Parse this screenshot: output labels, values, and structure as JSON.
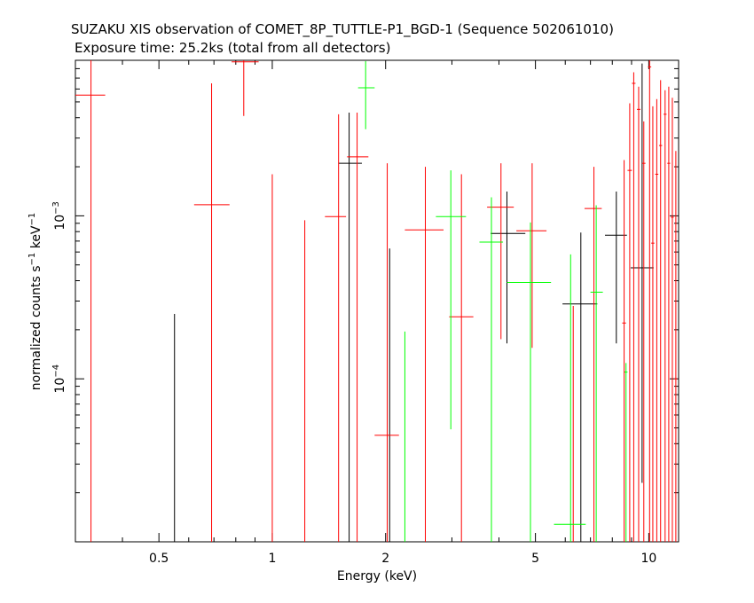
{
  "chart_data": {
    "type": "scatter",
    "title": "SUZAKU XIS observation of COMET_8P_TUTTLE-P1_BGD-1 (Sequence 502061010)",
    "subtitle": "Exposure time: 25.2ks (total from all detectors)",
    "xlabel": "Energy (keV)",
    "ylabel": {
      "main": "normalized counts s",
      "sup1": "−1",
      "mid": " keV",
      "sup2": "−1"
    },
    "x_scale": "log",
    "y_scale": "log",
    "xlim": [
      0.3,
      12
    ],
    "ylim": [
      1e-05,
      0.009
    ],
    "x_ticks": [
      {
        "value": 0.5,
        "label": "0.5"
      },
      {
        "value": 1,
        "label": "1"
      },
      {
        "value": 2,
        "label": "2"
      },
      {
        "value": 5,
        "label": "5"
      },
      {
        "value": 10,
        "label": "10"
      }
    ],
    "y_ticks": [
      {
        "value": 0.001,
        "base": "10",
        "exp": "−3"
      },
      {
        "value": 0.0001,
        "base": "10",
        "exp": "−4"
      }
    ],
    "series_colors": {
      "black": "#000000",
      "red": "#ff0000",
      "green": "#00ff00"
    },
    "series": [
      {
        "color": "black",
        "points": [
          {
            "x": 0.55,
            "y": null,
            "x_lo": null,
            "x_hi": null,
            "y_lo": 1e-05,
            "y_hi": 0.00025
          },
          {
            "x": 1.6,
            "y": 0.0021,
            "x_lo": 1.5,
            "x_hi": 1.73,
            "y_lo": 1e-05,
            "y_hi": 0.0043
          },
          {
            "x": 2.05,
            "y": null,
            "x_lo": null,
            "x_hi": null,
            "y_lo": 1e-05,
            "y_hi": 0.00063
          },
          {
            "x": 4.2,
            "y": 0.00078,
            "x_lo": 3.8,
            "x_hi": 4.7,
            "y_lo": 0.000165,
            "y_hi": 0.00141
          },
          {
            "x": 6.6,
            "y": 0.000288,
            "x_lo": 5.9,
            "x_hi": 7.3,
            "y_lo": 1e-05,
            "y_hi": 0.00079
          },
          {
            "x": 8.2,
            "y": 0.00076,
            "x_lo": 7.65,
            "x_hi": 8.75,
            "y_lo": 0.000165,
            "y_hi": 0.00141
          },
          {
            "x": 9.6,
            "y": 0.00048,
            "x_lo": 8.95,
            "x_hi": 10.3,
            "y_lo": 2.3e-05,
            "y_hi": 0.0086
          }
        ]
      },
      {
        "color": "red",
        "points": [
          {
            "x": 0.33,
            "y": 0.0055,
            "x_lo": 0.3,
            "x_hi": 0.36,
            "y_lo": 1e-05,
            "y_hi": 0.009
          },
          {
            "x": 0.69,
            "y": 0.00117,
            "x_lo": 0.62,
            "x_hi": 0.77,
            "y_lo": 1e-05,
            "y_hi": 0.0065
          },
          {
            "x": 0.84,
            "y": 0.0088,
            "x_lo": 0.78,
            "x_hi": 0.92,
            "y_lo": 0.0041,
            "y_hi": 0.009
          },
          {
            "x": 1.0,
            "y": null,
            "x_lo": null,
            "x_hi": null,
            "y_lo": 1e-05,
            "y_hi": 0.0018
          },
          {
            "x": 1.22,
            "y": null,
            "x_lo": null,
            "x_hi": null,
            "y_lo": 1e-05,
            "y_hi": 0.00094
          },
          {
            "x": 1.5,
            "y": 0.00099,
            "x_lo": 1.38,
            "x_hi": 1.57,
            "y_lo": 1e-05,
            "y_hi": 0.0042
          },
          {
            "x": 1.68,
            "y": 0.0023,
            "x_lo": 1.58,
            "x_hi": 1.8,
            "y_lo": 1e-05,
            "y_hi": 0.0043
          },
          {
            "x": 2.02,
            "y": 4.5e-05,
            "x_lo": 1.87,
            "x_hi": 2.17,
            "y_lo": 1e-05,
            "y_hi": 0.0021
          },
          {
            "x": 2.55,
            "y": 0.00082,
            "x_lo": 2.25,
            "x_hi": 2.85,
            "y_lo": 1e-05,
            "y_hi": 0.002
          },
          {
            "x": 3.18,
            "y": 0.00024,
            "x_lo": 2.95,
            "x_hi": 3.42,
            "y_lo": 1e-05,
            "y_hi": 0.0018
          },
          {
            "x": 4.05,
            "y": 0.00113,
            "x_lo": 3.72,
            "x_hi": 4.38,
            "y_lo": 0.000175,
            "y_hi": 0.0021
          },
          {
            "x": 4.9,
            "y": 0.00081,
            "x_lo": 4.45,
            "x_hi": 5.35,
            "y_lo": 0.000155,
            "y_hi": 0.0021
          },
          {
            "x": 6.3,
            "y": null,
            "x_lo": null,
            "x_hi": null,
            "y_lo": 1e-05,
            "y_hi": 0.00028
          },
          {
            "x": 7.15,
            "y": 0.00111,
            "x_lo": 6.75,
            "x_hi": 7.5,
            "y_lo": 1e-05,
            "y_hi": 0.002
          },
          {
            "x": 8.6,
            "y": 0.00022,
            "x_lo": 8.5,
            "x_hi": 8.7,
            "y_lo": 1e-05,
            "y_hi": 0.0022
          },
          {
            "x": 8.9,
            "y": 0.0019,
            "x_lo": 8.78,
            "x_hi": 9.02,
            "y_lo": 1e-05,
            "y_hi": 0.0049
          },
          {
            "x": 9.12,
            "y": 0.0065,
            "x_lo": 9.02,
            "x_hi": 9.22,
            "y_lo": 1e-05,
            "y_hi": 0.0076
          },
          {
            "x": 9.4,
            "y": 0.0045,
            "x_lo": 9.3,
            "x_hi": 9.5,
            "y_lo": 1e-05,
            "y_hi": 0.0062
          },
          {
            "x": 9.7,
            "y": 0.0021,
            "x_lo": 9.6,
            "x_hi": 9.8,
            "y_lo": 1e-05,
            "y_hi": 0.0038
          },
          {
            "x": 10.05,
            "y": 0.0082,
            "x_lo": 9.95,
            "x_hi": 10.15,
            "y_lo": 1e-05,
            "y_hi": 0.009
          },
          {
            "x": 10.25,
            "y": 0.00068,
            "x_lo": 10.15,
            "x_hi": 10.35,
            "y_lo": 1e-05,
            "y_hi": 0.0047
          },
          {
            "x": 10.5,
            "y": 0.0018,
            "x_lo": 10.4,
            "x_hi": 10.6,
            "y_lo": 1e-05,
            "y_hi": 0.0052
          },
          {
            "x": 10.75,
            "y": 0.0027,
            "x_lo": 10.65,
            "x_hi": 10.85,
            "y_lo": 1e-05,
            "y_hi": 0.0068
          },
          {
            "x": 11.05,
            "y": 0.0042,
            "x_lo": 10.95,
            "x_hi": 11.15,
            "y_lo": 1e-05,
            "y_hi": 0.0059
          },
          {
            "x": 11.3,
            "y": 0.0021,
            "x_lo": 11.2,
            "x_hi": 11.4,
            "y_lo": 1e-05,
            "y_hi": 0.0062
          },
          {
            "x": 11.55,
            "y": 0.00098,
            "x_lo": 11.45,
            "x_hi": 11.65,
            "y_lo": 1e-05,
            "y_hi": 0.0053
          },
          {
            "x": 11.8,
            "y": 0.0001,
            "x_lo": 11.7,
            "x_hi": 11.9,
            "y_lo": 1e-05,
            "y_hi": 0.0025
          }
        ]
      },
      {
        "color": "green",
        "points": [
          {
            "x": 1.77,
            "y": 0.0061,
            "x_lo": 1.69,
            "x_hi": 1.87,
            "y_lo": 0.0034,
            "y_hi": 0.0089
          },
          {
            "x": 2.25,
            "y": null,
            "x_lo": null,
            "x_hi": null,
            "y_lo": 1e-05,
            "y_hi": 0.000195
          },
          {
            "x": 2.98,
            "y": 0.00099,
            "x_lo": 2.72,
            "x_hi": 3.27,
            "y_lo": 4.9e-05,
            "y_hi": 0.0019
          },
          {
            "x": 3.82,
            "y": 0.00069,
            "x_lo": 3.55,
            "x_hi": 4.1,
            "y_lo": 1e-05,
            "y_hi": 0.0013
          },
          {
            "x": 4.85,
            "y": 0.00039,
            "x_lo": 4.2,
            "x_hi": 5.5,
            "y_lo": 1e-05,
            "y_hi": 0.00091
          },
          {
            "x": 6.2,
            "y": 1.28e-05,
            "x_lo": 5.6,
            "x_hi": 6.8,
            "y_lo": 1e-05,
            "y_hi": 0.00058
          },
          {
            "x": 7.25,
            "y": 0.00034,
            "x_lo": 7.0,
            "x_hi": 7.55,
            "y_lo": 1e-05,
            "y_hi": 0.00116
          },
          {
            "x": 8.7,
            "y": 0.00011,
            "x_lo": 8.62,
            "x_hi": 8.78,
            "y_lo": 1e-05,
            "y_hi": 0.000125
          }
        ]
      }
    ]
  }
}
